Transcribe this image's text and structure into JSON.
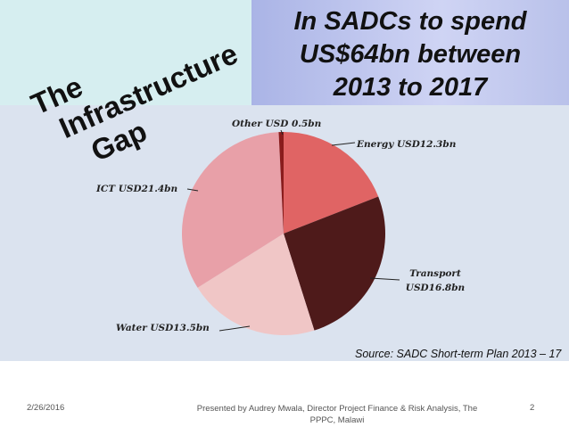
{
  "slide": {
    "corner_title": [
      "The",
      "Infrastructure",
      "Gap"
    ],
    "headline": [
      "In SADCs to spend",
      "US$64bn between",
      "2013 to 2017"
    ],
    "source": "Source: SADC Short-term Plan 2013 – 17",
    "footer": {
      "date": "2/26/2016",
      "presenter": "Presented by Audrey Mwala, Director Project Finance & Risk Analysis, The PPPC, Malawi",
      "page": "2"
    }
  },
  "chart_data": {
    "type": "pie",
    "values": [
      12.3,
      16.8,
      13.5,
      21.4,
      0.5
    ],
    "value_labels": [
      "Energy USD12.3bn",
      "Transport USD16.8bn",
      "Water USD13.5bn",
      "ICT USD21.4bn",
      "Other USD 0.5bn"
    ],
    "colors": [
      "#e06464",
      "#4e1a1a",
      "#f0c6c6",
      "#e8a0a8",
      "#8a1c1c"
    ]
  }
}
